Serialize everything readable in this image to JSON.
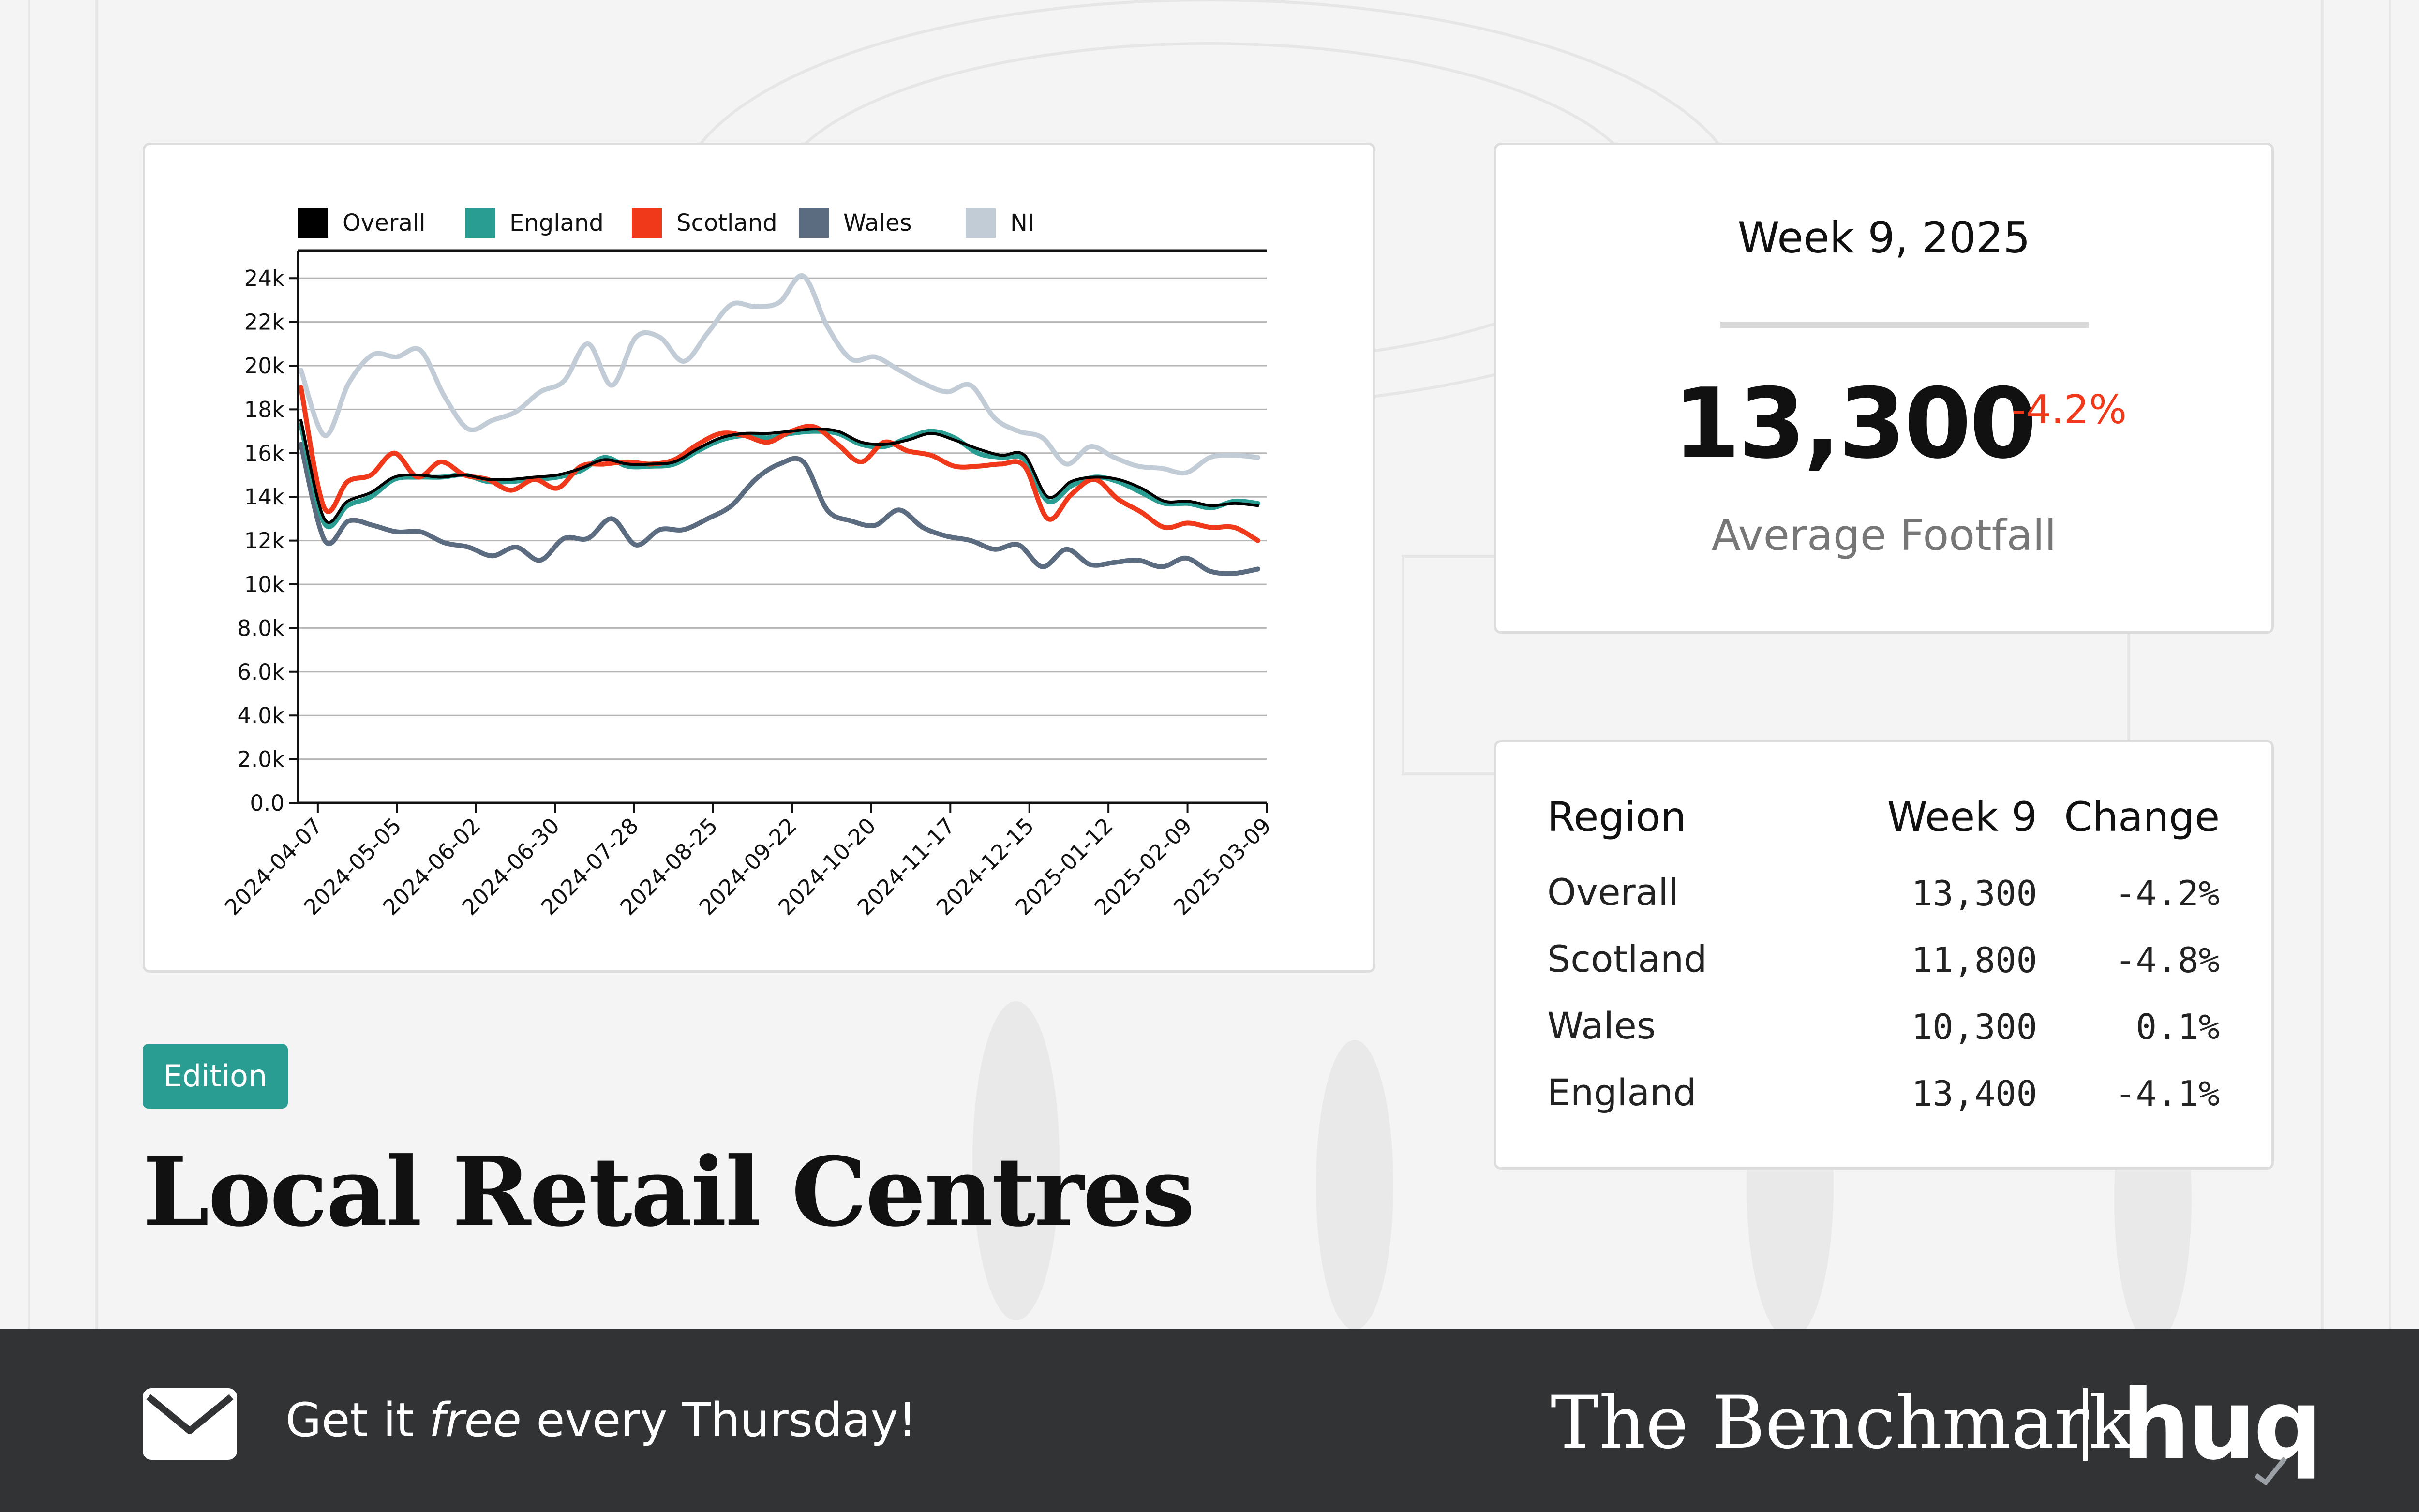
{
  "edition_label": "Edition",
  "title": "Local Retail Centres",
  "week_card": {
    "week": "Week 9, 2025",
    "value": "13,300",
    "change": "-4.2%",
    "label": "Average Footfall"
  },
  "table": {
    "headers": [
      "Region",
      "Week 9",
      "Change"
    ],
    "rows": [
      {
        "region": "Overall",
        "value": "13,300",
        "change": "-4.2%"
      },
      {
        "region": "Scotland",
        "value": "11,800",
        "change": "-4.8%"
      },
      {
        "region": "Wales",
        "value": "10,300",
        "change": "0.1%"
      },
      {
        "region": "England",
        "value": "13,400",
        "change": "-4.1%"
      }
    ]
  },
  "footer": {
    "cta_prefix": "Get it ",
    "cta_emphasis": "free",
    "cta_suffix": " every Thursday!",
    "brand": "The Benchmark",
    "logo": "huq",
    "mail_icon": "envelope-icon"
  },
  "colors": {
    "accent": "#2a9d93",
    "negative": "#f0391a",
    "footer_bg": "#323335"
  },
  "chart_data": {
    "type": "line",
    "x_ticks": [
      "2024-04-07",
      "2024-05-05",
      "2024-06-02",
      "2024-06-30",
      "2024-07-28",
      "2024-08-25",
      "2024-09-22",
      "2024-10-20",
      "2024-11-17",
      "2024-12-15",
      "2025-01-12",
      "2025-02-09",
      "2025-03-09"
    ],
    "y_ticks": [
      "0.0",
      "2.0k",
      "4.0k",
      "6.0k",
      "8.0k",
      "10k",
      "12k",
      "14k",
      "16k",
      "18k",
      "20k",
      "22k",
      "24k"
    ],
    "ylim": [
      0,
      25000
    ],
    "x_start": "2024-03-31",
    "x_end": "2025-03-09",
    "grid": "horizontal",
    "legend_position": "top-left",
    "series": [
      {
        "name": "Overall",
        "color": "#000000",
        "values": [
          17500,
          13000,
          13800,
          14200,
          14900,
          15000,
          14900,
          15000,
          14800,
          14800,
          14900,
          15000,
          15300,
          15700,
          15500,
          15500,
          15600,
          16200,
          16700,
          16900,
          16900,
          17000,
          17100,
          17000,
          16500,
          16400,
          16600,
          16900,
          16600,
          16200,
          15900,
          15900,
          14000,
          14700,
          14900,
          14800,
          14400,
          13800,
          13800,
          13600,
          13700,
          13600
        ]
      },
      {
        "name": "England",
        "color": "#2a9d93",
        "values": [
          17300,
          12800,
          13600,
          14000,
          14800,
          14900,
          14900,
          15000,
          14700,
          14700,
          14800,
          14900,
          15200,
          15800,
          15400,
          15400,
          15500,
          16100,
          16600,
          16800,
          16700,
          16900,
          17000,
          16900,
          16400,
          16300,
          16700,
          17000,
          16700,
          16000,
          15800,
          15700,
          13800,
          14500,
          14900,
          14700,
          14200,
          13700,
          13700,
          13500,
          13800,
          13700
        ]
      },
      {
        "name": "Scotland",
        "color": "#f0391a",
        "values": [
          19000,
          13500,
          14700,
          15000,
          16000,
          14900,
          15600,
          15000,
          14800,
          14300,
          14800,
          14400,
          15400,
          15500,
          15600,
          15500,
          15700,
          16400,
          16900,
          16800,
          16500,
          17000,
          17200,
          16400,
          15600,
          16500,
          16100,
          15900,
          15400,
          15400,
          15500,
          15400,
          13000,
          14100,
          14800,
          13900,
          13300,
          12600,
          12800,
          12600,
          12600,
          12000
        ]
      },
      {
        "name": "Wales",
        "color": "#5b6b80",
        "values": [
          16400,
          12000,
          12900,
          12700,
          12400,
          12400,
          11900,
          11700,
          11300,
          11700,
          11100,
          12100,
          12100,
          13000,
          11800,
          12500,
          12500,
          13000,
          13600,
          14800,
          15500,
          15600,
          13400,
          12900,
          12700,
          13400,
          12600,
          12200,
          12000,
          11600,
          11800,
          10800,
          11600,
          10900,
          11000,
          11100,
          10800,
          11200,
          10600,
          10500,
          10700
        ]
      },
      {
        "name": "NI",
        "color": "#c2ccd6",
        "values": [
          19800,
          16800,
          19200,
          20500,
          20400,
          20700,
          18600,
          17100,
          17500,
          17900,
          18800,
          19300,
          21000,
          19100,
          21300,
          21300,
          20200,
          21500,
          22800,
          22700,
          22900,
          24100,
          21800,
          20300,
          20400,
          19800,
          19200,
          18800,
          19100,
          17600,
          17000,
          16700,
          15500,
          16300,
          15800,
          15400,
          15300,
          15100,
          15800,
          15900,
          15800
        ]
      }
    ]
  }
}
